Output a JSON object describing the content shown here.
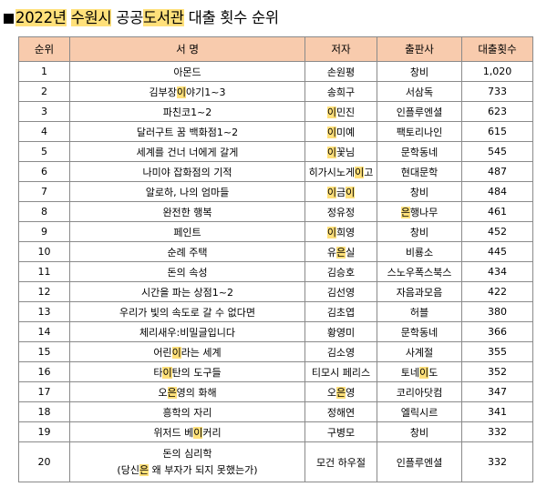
{
  "title": {
    "year": "2022년",
    "city": "수원시",
    "word1_before": "공공",
    "word1_highlight": "도서관",
    "rest": "대출 횟수 순위"
  },
  "table": {
    "headers": [
      "순위",
      "서 명",
      "저자",
      "출판사",
      "대출횟수"
    ],
    "highlight_color": "#ffe07a",
    "header_color": "#f8cbad",
    "rows": [
      {
        "rank": "1",
        "book": [
          [
            "아몬드",
            ""
          ]
        ],
        "author": [
          [
            "손원평",
            ""
          ]
        ],
        "publisher": [
          [
            "창비",
            ""
          ]
        ],
        "count": "1,020"
      },
      {
        "rank": "2",
        "book": [
          [
            "김부장",
            ""
          ],
          [
            "이",
            "hl"
          ],
          [
            "야기1~3",
            ""
          ]
        ],
        "author": [
          [
            "송희구",
            ""
          ]
        ],
        "publisher": [
          [
            "서삼독",
            ""
          ]
        ],
        "count": "733"
      },
      {
        "rank": "3",
        "book": [
          [
            "파친코1~2",
            ""
          ]
        ],
        "author": [
          [
            "이",
            "hl"
          ],
          [
            "민진",
            ""
          ]
        ],
        "publisher": [
          [
            "인플루엔셜",
            ""
          ]
        ],
        "count": "623"
      },
      {
        "rank": "4",
        "book": [
          [
            "달러구트 꿈 백화점1~2",
            ""
          ]
        ],
        "author": [
          [
            "이",
            "hl"
          ],
          [
            "미예",
            ""
          ]
        ],
        "publisher": [
          [
            "팩토리나인",
            ""
          ]
        ],
        "count": "615"
      },
      {
        "rank": "5",
        "book": [
          [
            "세계를 건너 너에게 갈게",
            ""
          ]
        ],
        "author": [
          [
            "이",
            "hl"
          ],
          [
            "꽃님",
            ""
          ]
        ],
        "publisher": [
          [
            "문학동네",
            ""
          ]
        ],
        "count": "545"
      },
      {
        "rank": "6",
        "book": [
          [
            "나미야 잡화점의 기적",
            ""
          ]
        ],
        "author": [
          [
            "히가시노게",
            ""
          ],
          [
            "이",
            "hl"
          ],
          [
            "고",
            ""
          ]
        ],
        "publisher": [
          [
            "현대문학",
            ""
          ]
        ],
        "count": "487"
      },
      {
        "rank": "7",
        "book": [
          [
            "알로하, 나의 엄마들",
            ""
          ]
        ],
        "author": [
          [
            "이",
            "hl"
          ],
          [
            "금",
            ""
          ],
          [
            "이",
            "hl"
          ]
        ],
        "publisher": [
          [
            "창비",
            ""
          ]
        ],
        "count": "484"
      },
      {
        "rank": "8",
        "book": [
          [
            "완전한 행복",
            ""
          ]
        ],
        "author": [
          [
            "정유정",
            ""
          ]
        ],
        "publisher": [
          [
            "은",
            "hl"
          ],
          [
            "행나무",
            ""
          ]
        ],
        "count": "461"
      },
      {
        "rank": "9",
        "book": [
          [
            "페인트",
            ""
          ]
        ],
        "author": [
          [
            "이",
            "hl"
          ],
          [
            "희영",
            ""
          ]
        ],
        "publisher": [
          [
            "창비",
            ""
          ]
        ],
        "count": "452"
      },
      {
        "rank": "10",
        "book": [
          [
            "순례 주택",
            ""
          ]
        ],
        "author": [
          [
            "유",
            ""
          ],
          [
            "은",
            "hl"
          ],
          [
            "실",
            ""
          ]
        ],
        "publisher": [
          [
            "비룡소",
            ""
          ]
        ],
        "count": "445"
      },
      {
        "rank": "11",
        "book": [
          [
            "돈의 속성",
            ""
          ]
        ],
        "author": [
          [
            "김승호",
            ""
          ]
        ],
        "publisher": [
          [
            "스노우폭스북스",
            ""
          ]
        ],
        "count": "434"
      },
      {
        "rank": "12",
        "book": [
          [
            "시간을 파는 상점1~2",
            ""
          ]
        ],
        "author": [
          [
            "김선영",
            ""
          ]
        ],
        "publisher": [
          [
            "자음과모음",
            ""
          ]
        ],
        "count": "422"
      },
      {
        "rank": "13",
        "book": [
          [
            "우리가 빛의 속도로 갈 수 없다면",
            ""
          ]
        ],
        "author": [
          [
            "김초엽",
            ""
          ]
        ],
        "publisher": [
          [
            "허블",
            ""
          ]
        ],
        "count": "380"
      },
      {
        "rank": "14",
        "book": [
          [
            "체리새우:비밀글입니다",
            ""
          ]
        ],
        "author": [
          [
            "황영미",
            ""
          ]
        ],
        "publisher": [
          [
            "문학동네",
            ""
          ]
        ],
        "count": "366"
      },
      {
        "rank": "15",
        "book": [
          [
            "어린",
            ""
          ],
          [
            "이",
            "hl"
          ],
          [
            "라는 세계",
            ""
          ]
        ],
        "author": [
          [
            "김소영",
            ""
          ]
        ],
        "publisher": [
          [
            "사계절",
            ""
          ]
        ],
        "count": "355"
      },
      {
        "rank": "16",
        "book": [
          [
            "타",
            ""
          ],
          [
            "이",
            "hl"
          ],
          [
            "탄의 도구들",
            ""
          ]
        ],
        "author": [
          [
            "티모시 페리스",
            ""
          ]
        ],
        "publisher": [
          [
            "토네",
            ""
          ],
          [
            "이",
            "hl"
          ],
          [
            "도",
            ""
          ]
        ],
        "count": "352"
      },
      {
        "rank": "17",
        "book": [
          [
            "오",
            ""
          ],
          [
            "은",
            "hl"
          ],
          [
            "영의 화해",
            ""
          ]
        ],
        "author": [
          [
            "오",
            ""
          ],
          [
            "은",
            "hl"
          ],
          [
            "영",
            ""
          ]
        ],
        "publisher": [
          [
            "코리아닷컴",
            ""
          ]
        ],
        "count": "347"
      },
      {
        "rank": "18",
        "book": [
          [
            "흥학의 자리",
            ""
          ]
        ],
        "author": [
          [
            "정해연",
            ""
          ]
        ],
        "publisher": [
          [
            "엘릭시르",
            ""
          ]
        ],
        "count": "341"
      },
      {
        "rank": "19",
        "book": [
          [
            "위저드 베",
            ""
          ],
          [
            "이",
            "hl"
          ],
          [
            "커리",
            ""
          ]
        ],
        "author": [
          [
            "구병모",
            ""
          ]
        ],
        "publisher": [
          [
            "창비",
            ""
          ]
        ],
        "count": "332"
      },
      {
        "rank": "20",
        "book_line1": "돈의 심리학",
        "book": [
          [
            "(당신",
            ""
          ],
          [
            "은",
            "hl"
          ],
          [
            " 왜 부자가 되지 못했는가)",
            ""
          ]
        ],
        "author": [
          [
            "모건 하우절",
            ""
          ]
        ],
        "publisher": [
          [
            "인플루엔셜",
            ""
          ]
        ],
        "count": "332",
        "tall": true
      }
    ]
  }
}
